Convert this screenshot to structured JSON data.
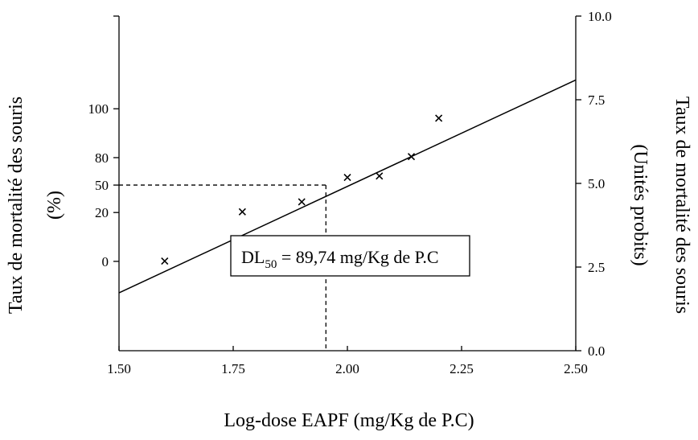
{
  "chart_data": {
    "type": "scatter",
    "xlabel": "Log-dose EAPF (mg/Kg de P.C)",
    "ylabel_left_line1": "Taux de mortalité des souris",
    "ylabel_left_line2": "(%)",
    "ylabel_right_line1": "Taux de mortalité des souris",
    "ylabel_right_line2": "(Unités probits)",
    "xlim": [
      1.5,
      2.5
    ],
    "ylim": [
      0.0,
      10.0
    ],
    "x_ticks": [
      "1.50",
      "1.75",
      "2.00",
      "2.25",
      "2.50"
    ],
    "y_right_ticks": [
      "0.0",
      "2.5",
      "5.0",
      "7.5",
      "10.0"
    ],
    "y_left_ticks": [
      {
        "label": "0",
        "probit": 2.67
      },
      {
        "label": "20",
        "probit": 4.13
      },
      {
        "label": "50",
        "probit": 4.95
      },
      {
        "label": "80",
        "probit": 5.77
      },
      {
        "label": "100",
        "probit": 7.23
      }
    ],
    "points": [
      {
        "x": 1.6,
        "y": 2.68
      },
      {
        "x": 1.77,
        "y": 4.15
      },
      {
        "x": 1.9,
        "y": 4.45
      },
      {
        "x": 2.0,
        "y": 5.18
      },
      {
        "x": 2.07,
        "y": 5.22
      },
      {
        "x": 2.14,
        "y": 5.8
      },
      {
        "x": 2.2,
        "y": 6.95
      }
    ],
    "regression_line": {
      "x": [
        1.5,
        2.5
      ],
      "y": [
        1.73,
        8.09
      ]
    },
    "ld50": {
      "x": 1.953,
      "y": 4.95
    },
    "annotation": {
      "prefix": "DL",
      "subscript": "50",
      "suffix": " = 89,74 mg/Kg de P.C"
    }
  }
}
